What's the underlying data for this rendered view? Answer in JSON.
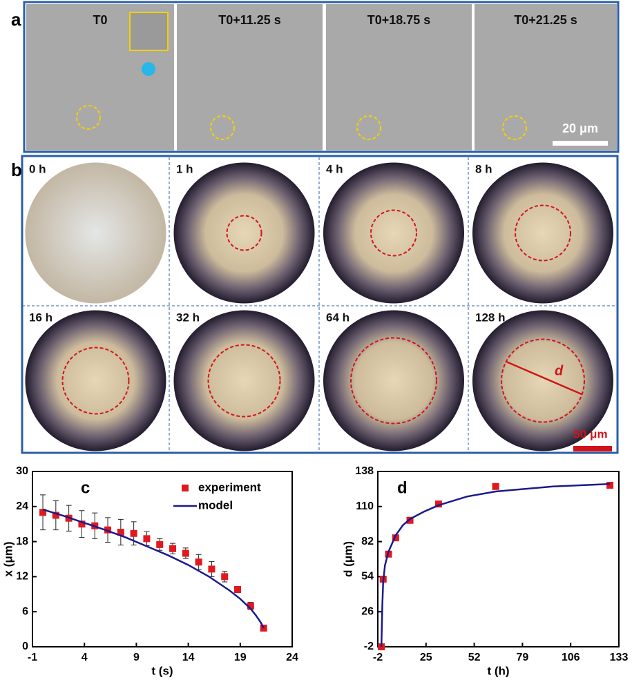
{
  "panel_a": {
    "label": "a",
    "frames": [
      "T0",
      "T0+11.25 s",
      "T0+18.75 s",
      "T0+21.25 s"
    ],
    "scale_bar": "20 μm"
  },
  "panel_b": {
    "label": "b",
    "times": [
      "0 h",
      "1 h",
      "4 h",
      "8 h",
      "16 h",
      "32 h",
      "64 h",
      "128 h"
    ],
    "scale_bar": "50 μm",
    "annotation": "d"
  },
  "chart_data": [
    {
      "type": "scatter",
      "panel": "c",
      "x_label": "t (s)",
      "y_label": "x (μm)",
      "xlim": [
        -1,
        24
      ],
      "xticks": [
        -1,
        4,
        9,
        14,
        19,
        24
      ],
      "ylim": [
        0,
        30
      ],
      "yticks": [
        0,
        6,
        12,
        18,
        24,
        30
      ],
      "legend": "top-right",
      "series": [
        {
          "name": "experiment",
          "color": "#e0191f",
          "style": "marker",
          "x": [
            0,
            1.25,
            2.5,
            3.75,
            5,
            6.25,
            7.5,
            8.75,
            10,
            11.25,
            12.5,
            13.75,
            15,
            16.25,
            17.5,
            18.75,
            20,
            21.25
          ],
          "values": [
            23,
            22.5,
            22,
            21,
            20.7,
            20,
            19.6,
            19.4,
            18.5,
            17.5,
            16.8,
            16,
            14.5,
            13.3,
            12,
            9.8,
            7,
            3.2
          ],
          "errors": [
            3,
            2.5,
            2.2,
            2.3,
            2.2,
            2.1,
            2.2,
            2.0,
            1.2,
            1.0,
            0.9,
            0.9,
            1.3,
            1.3,
            0.9,
            0.5,
            0.6,
            0.4
          ]
        },
        {
          "name": "model",
          "color": "#1a1a8c",
          "style": "line",
          "x": [
            0,
            2,
            4,
            6,
            8,
            10,
            12,
            14,
            16,
            18,
            19,
            20,
            20.5,
            21,
            21.25
          ],
          "values": [
            23.5,
            22.4,
            21.2,
            20,
            18.7,
            17.2,
            15.7,
            14,
            12,
            9.6,
            8.2,
            6.5,
            5.4,
            4.1,
            3.2
          ]
        }
      ]
    },
    {
      "type": "scatter",
      "panel": "d",
      "x_label": "t (h)",
      "y_label": "d (μm)",
      "xlim": [
        -2,
        133
      ],
      "xticks": [
        -2,
        25,
        52,
        79,
        106,
        133
      ],
      "ylim": [
        -2,
        138
      ],
      "yticks": [
        -2,
        26,
        54,
        82,
        110,
        138
      ],
      "series": [
        {
          "name": "experiment",
          "color": "#e0191f",
          "style": "marker",
          "x": [
            0,
            1,
            4,
            8,
            16,
            32,
            64,
            128
          ],
          "values": [
            -2,
            52,
            72,
            85,
            99,
            112,
            126,
            127
          ]
        },
        {
          "name": "model",
          "color": "#1a1a8c",
          "style": "line",
          "x": [
            0,
            0.5,
            1,
            2,
            4,
            8,
            12,
            16,
            24,
            32,
            48,
            64,
            96,
            128
          ],
          "values": [
            -2,
            30,
            50,
            63,
            74,
            87,
            95,
            100,
            106,
            111,
            118,
            122,
            126,
            128
          ]
        }
      ]
    }
  ]
}
